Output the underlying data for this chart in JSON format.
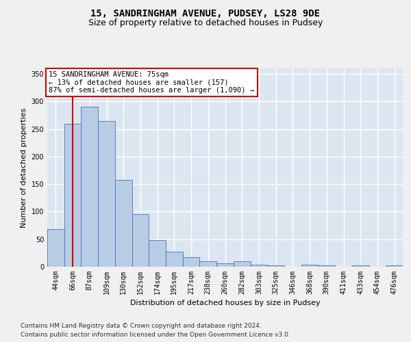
{
  "title_line1": "15, SANDRINGHAM AVENUE, PUDSEY, LS28 9DE",
  "title_line2": "Size of property relative to detached houses in Pudsey",
  "xlabel": "Distribution of detached houses by size in Pudsey",
  "ylabel": "Number of detached properties",
  "categories": [
    "44sqm",
    "66sqm",
    "87sqm",
    "109sqm",
    "130sqm",
    "152sqm",
    "174sqm",
    "195sqm",
    "217sqm",
    "238sqm",
    "260sqm",
    "282sqm",
    "303sqm",
    "325sqm",
    "346sqm",
    "368sqm",
    "390sqm",
    "411sqm",
    "433sqm",
    "454sqm",
    "476sqm"
  ],
  "values": [
    68,
    260,
    291,
    265,
    158,
    95,
    48,
    27,
    18,
    10,
    6,
    10,
    4,
    3,
    0,
    4,
    3,
    0,
    3,
    0,
    3
  ],
  "bar_color": "#b8cce4",
  "bar_edge_color": "#4472c4",
  "bar_edge_width": 0.6,
  "marker_index": 1,
  "marker_color": "#cc0000",
  "ylim_max": 360,
  "yticks": [
    0,
    50,
    100,
    150,
    200,
    250,
    300,
    350
  ],
  "annotation_title": "15 SANDRINGHAM AVENUE: 75sqm",
  "annotation_line2": "← 13% of detached houses are smaller (157)",
  "annotation_line3": "87% of semi-detached houses are larger (1,090) →",
  "annotation_box_facecolor": "#ffffff",
  "annotation_box_edgecolor": "#cc0000",
  "footer_line1": "Contains HM Land Registry data © Crown copyright and database right 2024.",
  "footer_line2": "Contains public sector information licensed under the Open Government Licence v3.0.",
  "bg_color": "#dce6f1",
  "grid_color": "#ffffff",
  "fig_bg": "#f0f0f0",
  "title_fontsize": 10,
  "subtitle_fontsize": 9,
  "tick_fontsize": 7,
  "ylabel_fontsize": 8,
  "xlabel_fontsize": 8,
  "footer_fontsize": 6.5,
  "annotation_fontsize": 7.5
}
